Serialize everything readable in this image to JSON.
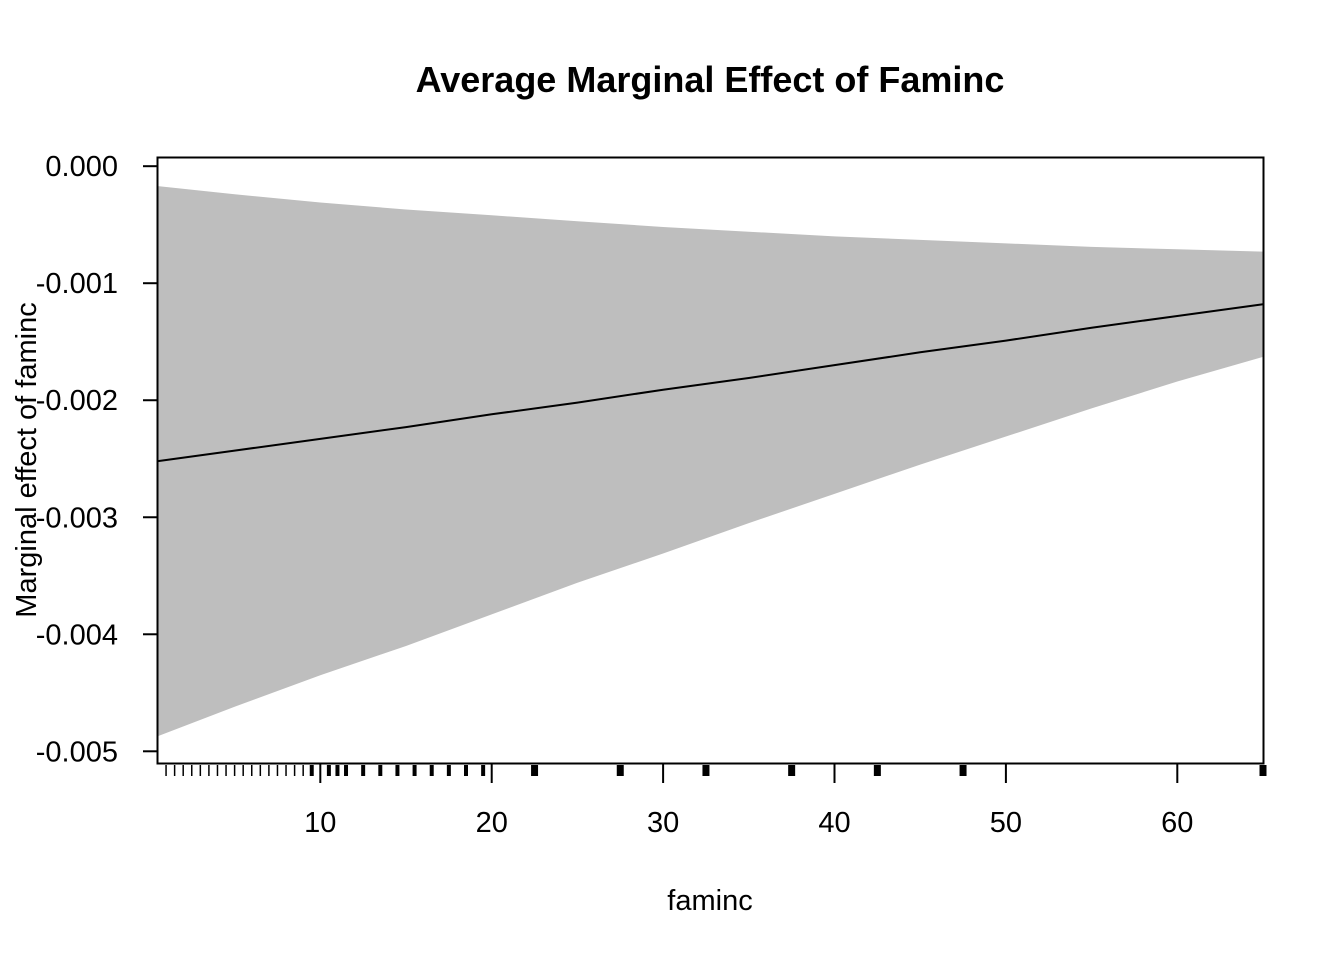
{
  "chart_data": {
    "type": "line",
    "title": "Average Marginal Effect of Faminc",
    "xlabel": "faminc",
    "ylabel": "Marginal effect of faminc",
    "xlim": [
      0.53,
      65
    ],
    "ylim": [
      -0.0051,
      7e-05
    ],
    "x_ticks": [
      10,
      20,
      30,
      40,
      50,
      60
    ],
    "x_tick_labels": [
      "10",
      "20",
      "30",
      "40",
      "50",
      "60"
    ],
    "y_ticks": [
      0.0,
      -0.001,
      -0.002,
      -0.003,
      -0.004,
      -0.005
    ],
    "y_tick_labels": [
      "0.000",
      "-0.001",
      "-0.002",
      "-0.003",
      "-0.004",
      "-0.005"
    ],
    "grid": false,
    "legend": "none",
    "series": [
      {
        "x": [
          0.53,
          5,
          10,
          15,
          20,
          25,
          30,
          35,
          40,
          45,
          50,
          55,
          60,
          65
        ],
        "values": [
          -0.00252,
          -0.00243,
          -0.00233,
          -0.00223,
          -0.00212,
          -0.00202,
          -0.00191,
          -0.00181,
          -0.0017,
          -0.00159,
          -0.00149,
          -0.00138,
          -0.00128,
          -0.00118
        ],
        "color": "#000000"
      }
    ],
    "band": {
      "x": [
        0.53,
        5,
        10,
        15,
        20,
        25,
        30,
        35,
        40,
        45,
        50,
        55,
        60,
        65
      ],
      "upper": [
        -0.00017,
        -0.00024,
        -0.00031,
        -0.00037,
        -0.00042,
        -0.00047,
        -0.00052,
        -0.00056,
        -0.0006,
        -0.00063,
        -0.00066,
        -0.00069,
        -0.00071,
        -0.00073
      ],
      "lower": [
        -0.00487,
        -0.00462,
        -0.00435,
        -0.0041,
        -0.00383,
        -0.00356,
        -0.00331,
        -0.00305,
        -0.0028,
        -0.00255,
        -0.00231,
        -0.00207,
        -0.00184,
        -0.00163
      ],
      "color": "#bebebe"
    },
    "rug": [
      1,
      1.5,
      2,
      2.5,
      3,
      3.5,
      4,
      4.5,
      5,
      5.5,
      6,
      6.5,
      7,
      7.5,
      8,
      8.5,
      9,
      9.5,
      10.5,
      11,
      11.5,
      12.5,
      13.5,
      14.5,
      15.5,
      16.5,
      17.5,
      18.5,
      19.5,
      22.5,
      27.5,
      32.5,
      37.5,
      42.5,
      47.5,
      65
    ],
    "rug_thick": [
      22.5,
      27.5,
      32.5,
      37.5,
      42.5,
      47.5,
      65
    ]
  }
}
